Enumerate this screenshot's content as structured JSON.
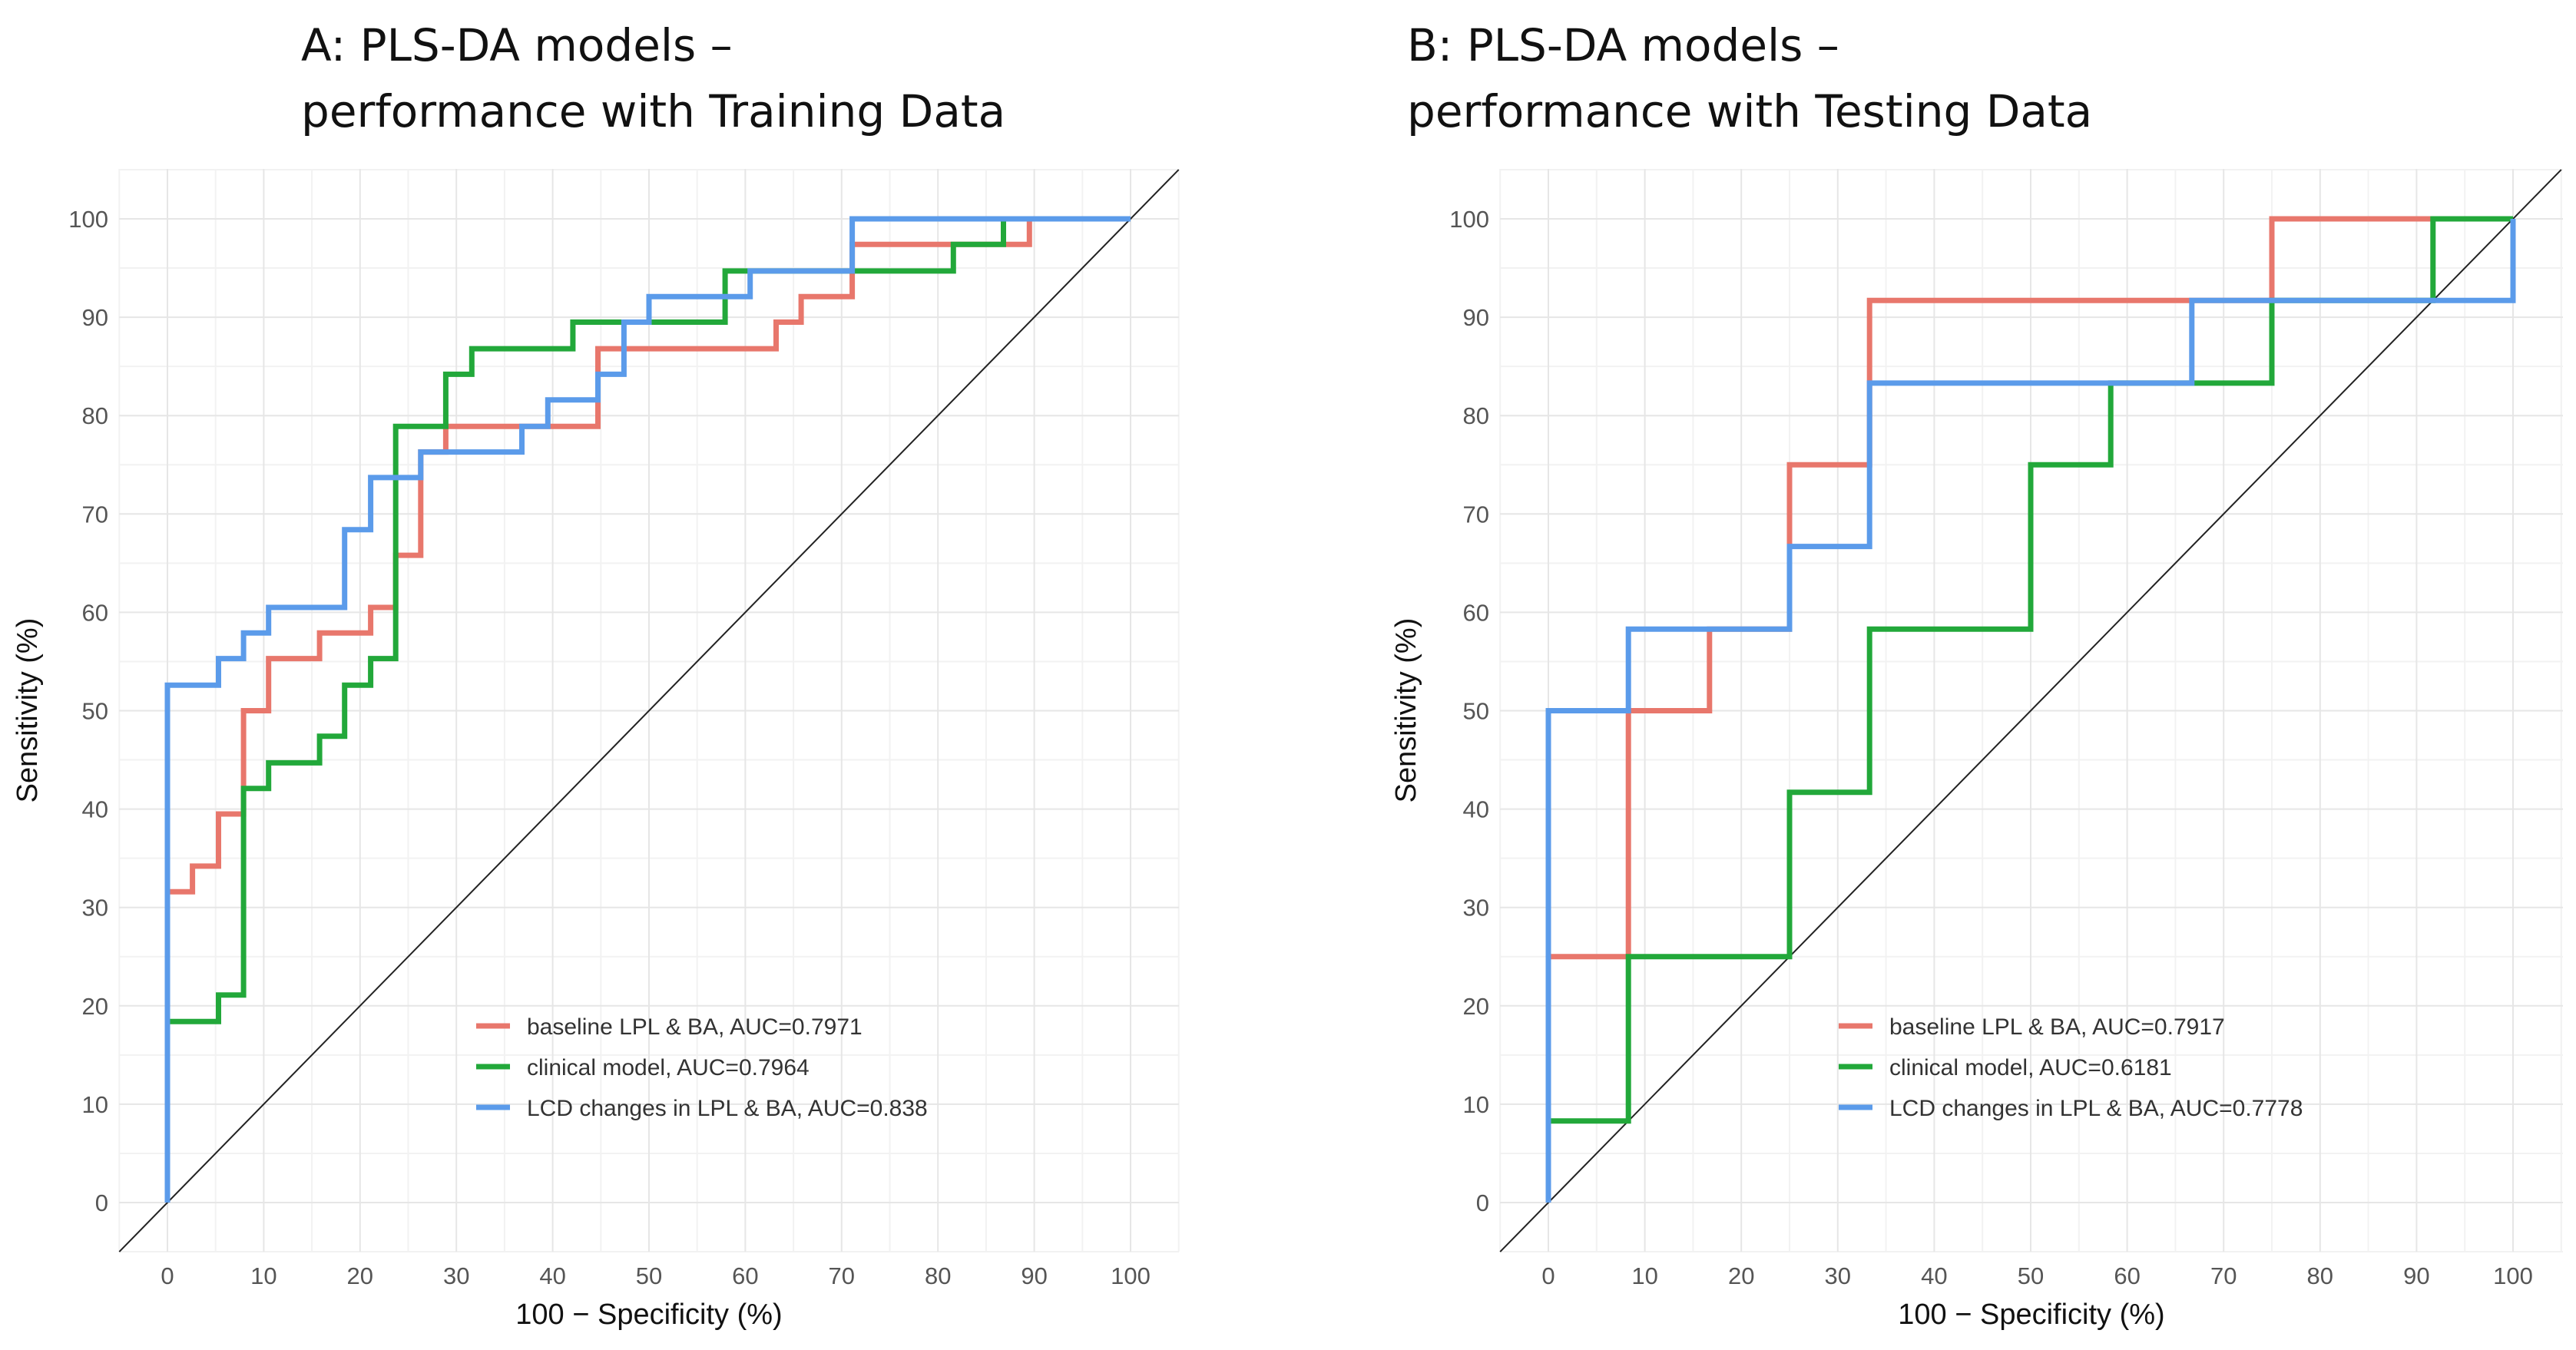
{
  "chart_data": [
    {
      "type": "line",
      "title": "A: PLS-DA models – performance with Training Data",
      "title_lines": [
        "A: PLS-DA models –",
        "performance with Training Data"
      ],
      "xlabel": "100 − Specificity (%)",
      "ylabel": "Sensitivity (%)",
      "xlim": [
        -5,
        105
      ],
      "ylim": [
        -5,
        105
      ],
      "xticks": [
        0,
        10,
        20,
        30,
        40,
        50,
        60,
        70,
        80,
        90,
        100
      ],
      "yticks": [
        0,
        10,
        20,
        30,
        40,
        50,
        60,
        70,
        80,
        90,
        100
      ],
      "grid": true,
      "legend_position": "bottom-right",
      "reference_line": "diagonal",
      "series": [
        {
          "name": "baseline LPL & BA, AUC=0.7971",
          "color": "#e8776c",
          "x": [
            0,
            0,
            2.6,
            2.6,
            5.3,
            5.3,
            7.9,
            7.9,
            10.5,
            10.5,
            15.8,
            15.8,
            21.1,
            21.1,
            23.7,
            23.7,
            26.3,
            26.3,
            28.9,
            28.9,
            36.8,
            36.8,
            44.7,
            44.7,
            63.2,
            63.2,
            65.8,
            65.8,
            71.1,
            71.1,
            86.8,
            86.8,
            89.5,
            89.5,
            100
          ],
          "y": [
            0,
            31.6,
            31.6,
            34.2,
            34.2,
            39.5,
            39.5,
            50,
            50,
            55.3,
            55.3,
            57.9,
            57.9,
            60.5,
            60.5,
            65.8,
            65.8,
            76.3,
            76.3,
            78.9,
            78.9,
            78.9,
            78.9,
            86.8,
            86.8,
            89.5,
            89.5,
            92.1,
            92.1,
            97.4,
            97.4,
            97.4,
            97.4,
            100,
            100
          ]
        },
        {
          "name": "clinical model, AUC=0.7964",
          "color": "#22a83a",
          "x": [
            0,
            0,
            5.3,
            5.3,
            7.9,
            7.9,
            10.5,
            10.5,
            15.8,
            15.8,
            18.4,
            18.4,
            21.1,
            21.1,
            23.7,
            23.7,
            28.9,
            28.9,
            31.6,
            31.6,
            42.1,
            42.1,
            47.4,
            47.4,
            57.9,
            57.9,
            60.5,
            60.5,
            81.6,
            81.6,
            86.8,
            86.8,
            100
          ],
          "y": [
            0,
            18.4,
            18.4,
            21.1,
            21.1,
            42.1,
            42.1,
            44.7,
            44.7,
            47.4,
            47.4,
            52.6,
            52.6,
            55.3,
            55.3,
            78.9,
            78.9,
            84.2,
            84.2,
            86.8,
            86.8,
            89.5,
            89.5,
            89.5,
            89.5,
            94.7,
            94.7,
            94.7,
            94.7,
            97.4,
            97.4,
            100,
            100
          ]
        },
        {
          "name": "LCD changes in LPL & BA, AUC=0.838",
          "color": "#5b9bea",
          "x": [
            0,
            0,
            5.3,
            5.3,
            7.9,
            7.9,
            10.5,
            10.5,
            18.4,
            18.4,
            21.1,
            21.1,
            26.3,
            26.3,
            36.8,
            36.8,
            39.5,
            39.5,
            44.7,
            44.7,
            47.4,
            47.4,
            50,
            50,
            60.5,
            60.5,
            71.1,
            71.1,
            100
          ],
          "y": [
            0,
            52.6,
            52.6,
            55.3,
            55.3,
            57.9,
            57.9,
            60.5,
            60.5,
            68.4,
            68.4,
            73.7,
            73.7,
            76.3,
            76.3,
            78.9,
            78.9,
            81.6,
            81.6,
            84.2,
            84.2,
            89.5,
            89.5,
            92.1,
            92.1,
            94.7,
            94.7,
            100,
            100
          ]
        }
      ]
    },
    {
      "type": "line",
      "title": "B: PLS-DA models – performance with Testing Data",
      "title_lines": [
        "B: PLS-DA models –",
        "performance with Testing Data"
      ],
      "xlabel": "100 − Specificity (%)",
      "ylabel": "Sensitivity (%)",
      "xlim": [
        -5,
        105
      ],
      "ylim": [
        -5,
        105
      ],
      "xticks": [
        0,
        10,
        20,
        30,
        40,
        50,
        60,
        70,
        80,
        90,
        100
      ],
      "yticks": [
        0,
        10,
        20,
        30,
        40,
        50,
        60,
        70,
        80,
        90,
        100
      ],
      "grid": true,
      "legend_position": "bottom-right",
      "reference_line": "diagonal",
      "series": [
        {
          "name": "baseline LPL & BA, AUC=0.7917",
          "color": "#e8776c",
          "x": [
            0,
            0,
            8.3,
            8.3,
            16.7,
            16.7,
            25,
            25,
            33.3,
            33.3,
            75,
            75,
            100
          ],
          "y": [
            0,
            25,
            25,
            50,
            50,
            58.3,
            58.3,
            75,
            75,
            91.7,
            91.7,
            100,
            100
          ]
        },
        {
          "name": "clinical model, AUC=0.6181",
          "color": "#22a83a",
          "x": [
            0,
            0,
            8.3,
            8.3,
            25,
            25,
            33.3,
            33.3,
            50,
            50,
            58.3,
            58.3,
            66.7,
            66.7,
            75,
            75,
            91.7,
            91.7,
            100
          ],
          "y": [
            0,
            8.3,
            8.3,
            25,
            25,
            41.7,
            41.7,
            58.3,
            58.3,
            75,
            75,
            83.3,
            83.3,
            83.3,
            83.3,
            91.7,
            91.7,
            100,
            100
          ]
        },
        {
          "name": "LCD changes in LPL & BA, AUC=0.7778",
          "color": "#5b9bea",
          "x": [
            0,
            0,
            8.3,
            8.3,
            25,
            25,
            33.3,
            33.3,
            66.7,
            66.7,
            100,
            100
          ],
          "y": [
            0,
            50,
            50,
            58.3,
            58.3,
            66.7,
            66.7,
            83.3,
            83.3,
            91.7,
            91.7,
            100
          ]
        }
      ]
    }
  ]
}
